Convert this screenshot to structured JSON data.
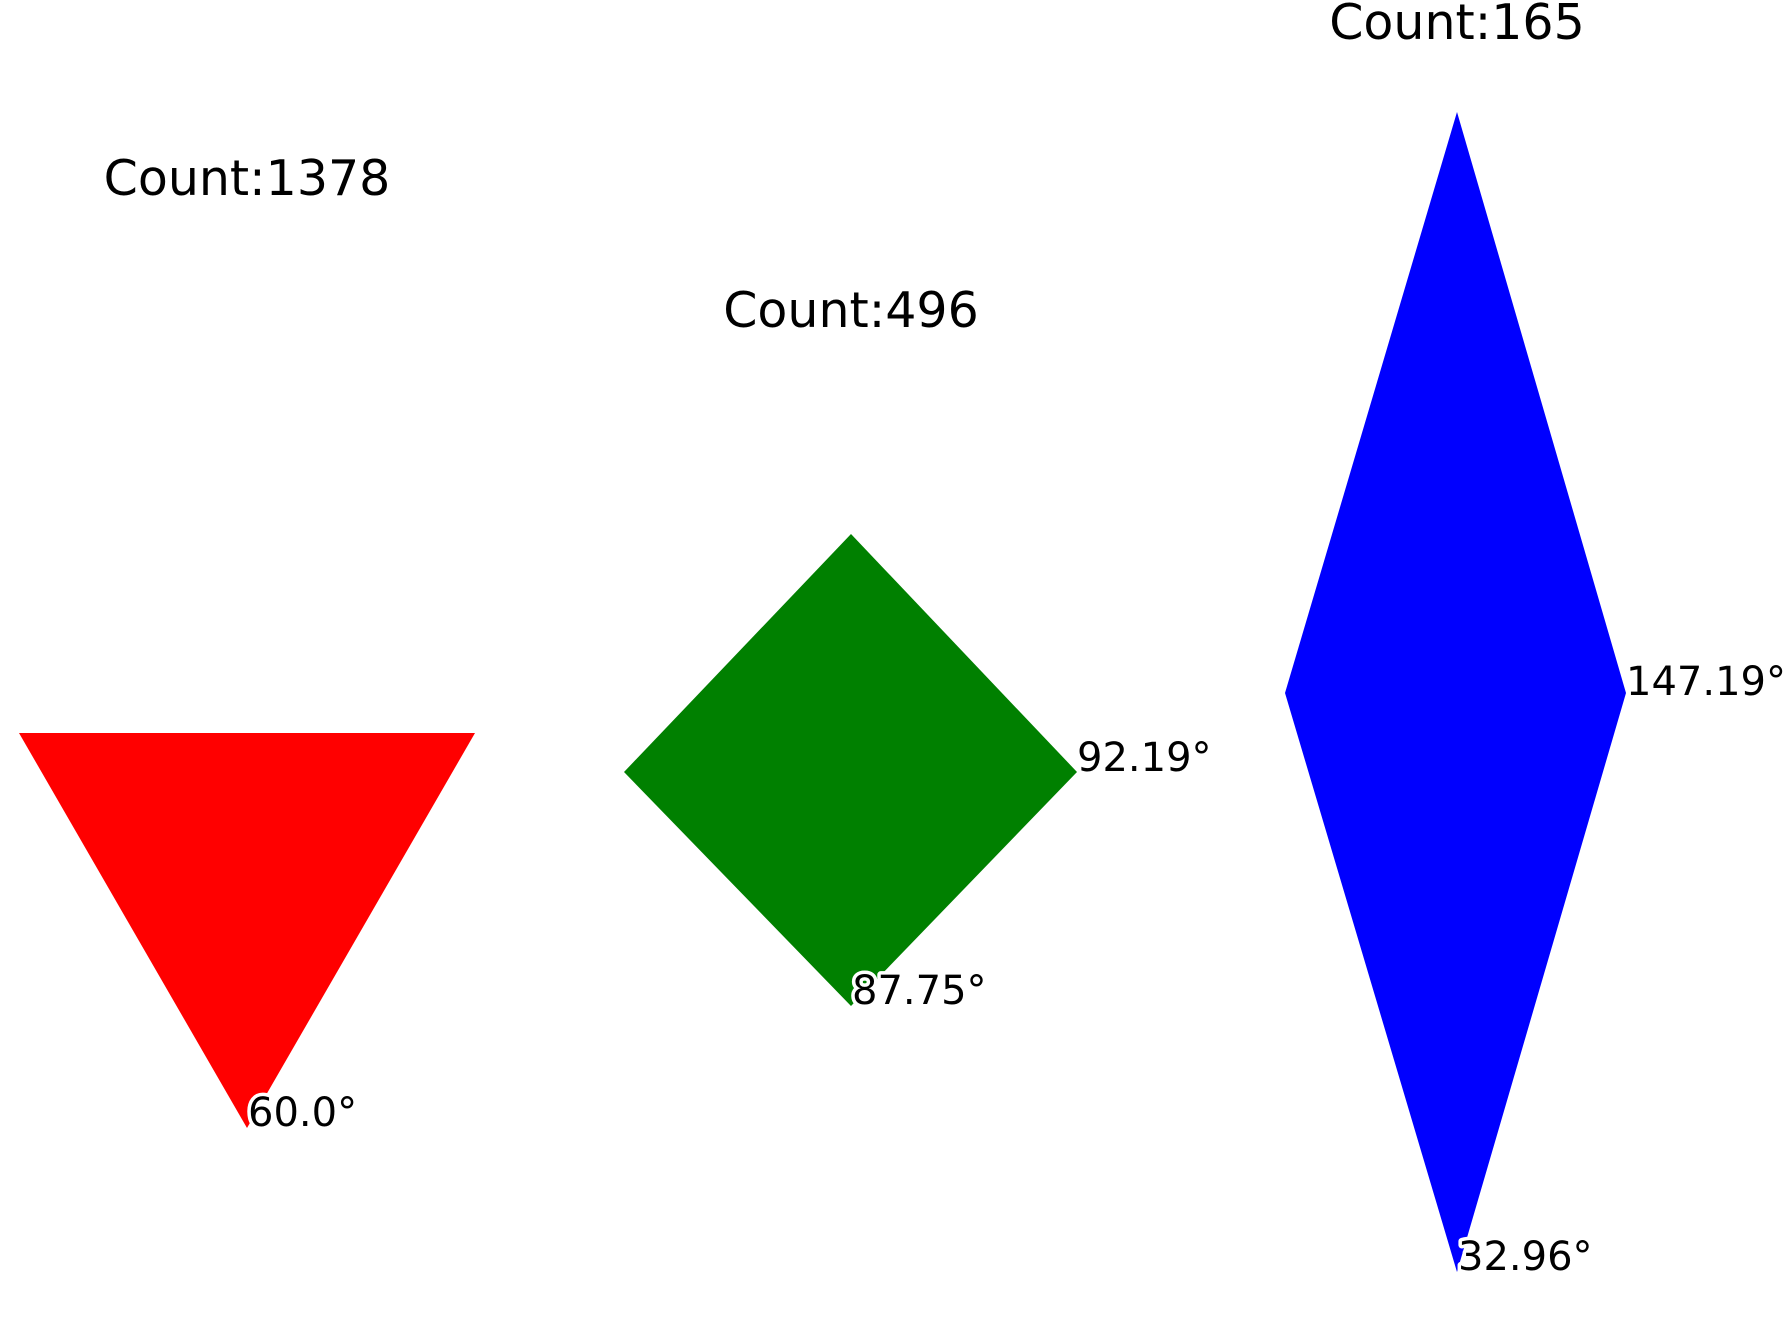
{
  "shapes": [
    {
      "id": "triangle",
      "count_label": "Count:1378",
      "color": "#ff0000",
      "angles": [
        "60.0°"
      ]
    },
    {
      "id": "square",
      "count_label": "Count:496",
      "color": "#008000",
      "angles": [
        "92.19°",
        "87.75°"
      ]
    },
    {
      "id": "rhombus",
      "count_label": "Count:165",
      "color": "#0000ff",
      "angles": [
        "147.19°",
        "32.96°"
      ]
    }
  ]
}
